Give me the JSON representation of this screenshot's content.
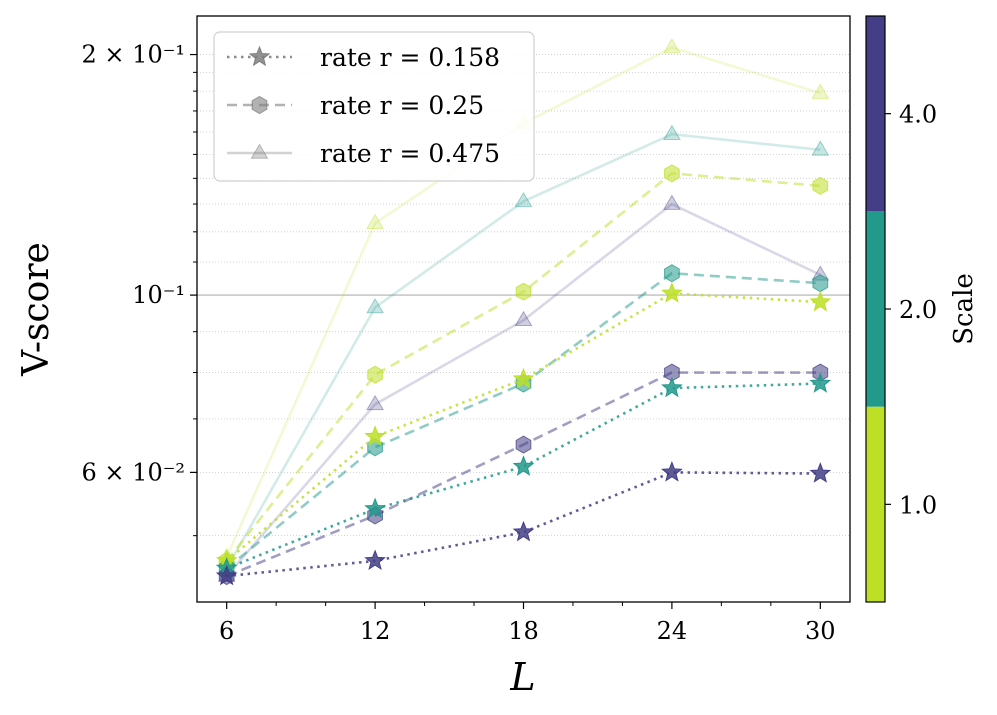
{
  "chart_data": {
    "type": "line",
    "xlabel": "L",
    "ylabel": "V-score",
    "x": [
      6,
      12,
      18,
      24,
      30
    ],
    "xlim": [
      4.8,
      31.2
    ],
    "xticks": [
      "6",
      "12",
      "18",
      "24",
      "30"
    ],
    "yscale": "log",
    "ylim": [
      0.0413,
      0.2235
    ],
    "yticks": [
      {
        "value": 0.06,
        "label": "6 × 10⁻²"
      },
      {
        "value": 0.1,
        "label": "10⁻¹"
      },
      {
        "value": 0.2,
        "label": "2 × 10⁻¹"
      }
    ],
    "grid": "minor dotted y-grid, solid line at 10⁻¹",
    "legend": {
      "placement": "top-left",
      "entries": [
        {
          "label": "rate r = 0.158",
          "marker": "star",
          "linestyle": "dotted"
        },
        {
          "label": "rate r = 0.25",
          "marker": "hexagon",
          "linestyle": "dashed"
        },
        {
          "label": "rate r = 0.475",
          "marker": "triangle",
          "linestyle": "solid"
        }
      ]
    },
    "colorbar": {
      "label": "Scale",
      "ticks": [
        "1.0",
        "2.0",
        "4.0"
      ],
      "colors": [
        "#bddf26",
        "#21998b",
        "#433e85"
      ]
    },
    "series": [
      {
        "rate": "0.158",
        "scale": "1.0",
        "color": "#bddf26",
        "values": [
          0.0465,
          0.0665,
          0.0785,
          0.1005,
          0.098
        ]
      },
      {
        "rate": "0.158",
        "scale": "2.0",
        "color": "#21998b",
        "values": [
          0.0455,
          0.054,
          0.061,
          0.0765,
          0.0775
        ]
      },
      {
        "rate": "0.158",
        "scale": "4.0",
        "color": "#433e85",
        "values": [
          0.0445,
          0.0465,
          0.0505,
          0.06,
          0.0598
        ]
      },
      {
        "rate": "0.25",
        "scale": "1.0",
        "color": "#bddf26",
        "values": [
          0.0465,
          0.0795,
          0.101,
          0.142,
          0.137
        ]
      },
      {
        "rate": "0.25",
        "scale": "2.0",
        "color": "#21998b",
        "values": [
          0.0455,
          0.0645,
          0.0775,
          0.1065,
          0.1035
        ]
      },
      {
        "rate": "0.25",
        "scale": "4.0",
        "color": "#433e85",
        "values": [
          0.0445,
          0.053,
          0.065,
          0.08,
          0.08
        ]
      },
      {
        "rate": "0.475",
        "scale": "1.0",
        "color": "#bddf26",
        "values": [
          0.047,
          0.123,
          0.164,
          0.204,
          0.179
        ]
      },
      {
        "rate": "0.475",
        "scale": "2.0",
        "color": "#21998b",
        "values": [
          0.0455,
          0.0965,
          0.131,
          0.159,
          0.152
        ]
      },
      {
        "rate": "0.475",
        "scale": "4.0",
        "color": "#433e85",
        "values": [
          0.0445,
          0.073,
          0.093,
          0.13,
          0.106
        ]
      }
    ]
  }
}
